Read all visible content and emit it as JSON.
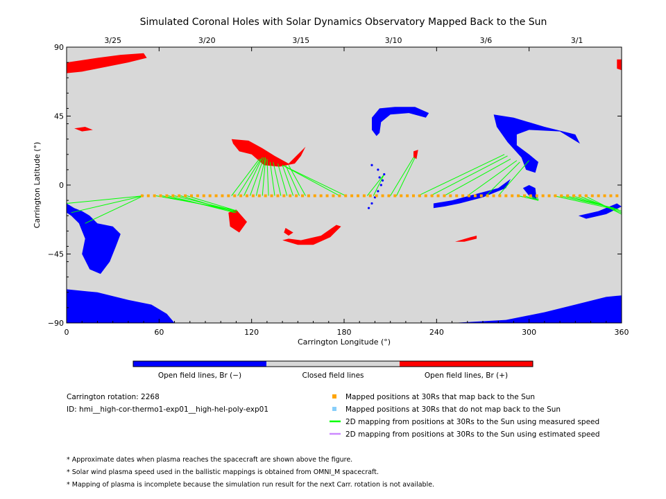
{
  "chart_data": {
    "type": "scatter",
    "title": "Simulated Coronal Holes with Solar Dynamics Observatory Mapped Back to the Sun",
    "xlabel": "Carrington Longitude (°)",
    "ylabel": "Carrington Latitude (°)",
    "xlim": [
      0,
      360
    ],
    "ylim": [
      -90,
      90
    ],
    "x_ticks": [
      "0",
      "60",
      "120",
      "180",
      "240",
      "300",
      "360"
    ],
    "y_ticks": [
      "90",
      "45",
      "0",
      "−45",
      "−90"
    ],
    "x_tick_values": [
      0,
      60,
      120,
      180,
      240,
      300,
      360
    ],
    "y_tick_values": [
      90,
      45,
      0,
      -45,
      -90
    ],
    "top_axis": {
      "labels": [
        "3/25",
        "3/20",
        "3/15",
        "3/10",
        "3/6",
        "3/1"
      ],
      "longitudes": [
        30,
        91,
        152,
        212,
        272,
        331
      ]
    },
    "colors": {
      "background": "#d8d8d8",
      "negative": "#0000ff",
      "positive": "#ff0000",
      "mapped": "#ffa500",
      "unmapped": "#87cefa",
      "measured": "#00ff00",
      "estimated": "#cc88ff"
    },
    "colorbar": {
      "labels": [
        "Open field lines, Br (−)",
        "Closed field lines",
        "Open field lines, Br (+)"
      ],
      "colors": [
        "#0000ff",
        "#d8d8d8",
        "#ff0000"
      ]
    },
    "regions": [
      {
        "polarity": "positive",
        "points": [
          [
            0,
            80
          ],
          [
            20,
            83
          ],
          [
            35,
            85
          ],
          [
            50,
            86
          ],
          [
            52,
            83
          ],
          [
            40,
            80
          ],
          [
            25,
            77
          ],
          [
            10,
            74
          ],
          [
            0,
            73
          ]
        ]
      },
      {
        "polarity": "positive",
        "points": [
          [
            357,
            82
          ],
          [
            360,
            82
          ],
          [
            360,
            75
          ],
          [
            357,
            76
          ]
        ]
      },
      {
        "polarity": "positive",
        "points": [
          [
            5,
            37
          ],
          [
            12,
            38
          ],
          [
            17,
            36
          ],
          [
            10,
            35
          ]
        ]
      },
      {
        "polarity": "positive",
        "points": [
          [
            107,
            30
          ],
          [
            118,
            29
          ],
          [
            127,
            24
          ],
          [
            135,
            19
          ],
          [
            144,
            14
          ],
          [
            150,
            20
          ],
          [
            155,
            25
          ],
          [
            152,
            19
          ],
          [
            148,
            14
          ],
          [
            138,
            12
          ],
          [
            128,
            13
          ],
          [
            120,
            20
          ],
          [
            112,
            22
          ],
          [
            108,
            27
          ]
        ]
      },
      {
        "polarity": "positive",
        "points": [
          [
            105,
            -18
          ],
          [
            110,
            -16
          ],
          [
            117,
            -24
          ],
          [
            112,
            -31
          ],
          [
            106,
            -27
          ]
        ]
      },
      {
        "polarity": "positive",
        "points": [
          [
            140,
            -36
          ],
          [
            150,
            -39
          ],
          [
            160,
            -39
          ],
          [
            171,
            -34
          ],
          [
            178,
            -27
          ],
          [
            175,
            -26
          ],
          [
            165,
            -33
          ],
          [
            152,
            -36
          ],
          [
            144,
            -35
          ]
        ]
      },
      {
        "polarity": "positive",
        "points": [
          [
            142,
            -28
          ],
          [
            147,
            -31
          ],
          [
            144,
            -33
          ],
          [
            141,
            -31
          ]
        ]
      },
      {
        "polarity": "positive",
        "points": [
          [
            225,
            22
          ],
          [
            228,
            23
          ],
          [
            227,
            17
          ],
          [
            225,
            18
          ]
        ]
      },
      {
        "polarity": "positive",
        "points": [
          [
            252,
            -37
          ],
          [
            262,
            -34
          ],
          [
            266,
            -33
          ],
          [
            266,
            -35
          ],
          [
            258,
            -37
          ]
        ]
      },
      {
        "polarity": "negative",
        "points": [
          [
            198,
            44
          ],
          [
            203,
            50
          ],
          [
            213,
            51
          ],
          [
            226,
            51
          ],
          [
            235,
            47
          ],
          [
            233,
            44
          ],
          [
            222,
            47
          ],
          [
            210,
            46
          ],
          [
            204,
            41
          ],
          [
            203,
            34
          ],
          [
            201,
            32
          ],
          [
            198,
            36
          ]
        ]
      },
      {
        "polarity": "negative",
        "points": [
          [
            277,
            46
          ],
          [
            290,
            44
          ],
          [
            310,
            38
          ],
          [
            330,
            33
          ],
          [
            333,
            27
          ],
          [
            320,
            35
          ],
          [
            300,
            36
          ],
          [
            292,
            33
          ],
          [
            292,
            26
          ],
          [
            300,
            20
          ],
          [
            306,
            15
          ],
          [
            304,
            8
          ],
          [
            298,
            10
          ],
          [
            295,
            18
          ],
          [
            286,
            28
          ],
          [
            279,
            38
          ]
        ]
      },
      {
        "polarity": "negative",
        "points": [
          [
            296,
            -2
          ],
          [
            300,
            -7
          ],
          [
            305,
            -10
          ],
          [
            304,
            -2
          ],
          [
            300,
            0
          ]
        ]
      },
      {
        "polarity": "negative",
        "points": [
          [
            238,
            -12
          ],
          [
            250,
            -10
          ],
          [
            265,
            -6
          ],
          [
            280,
            -2
          ],
          [
            288,
            4
          ],
          [
            285,
            -2
          ],
          [
            270,
            -8
          ],
          [
            255,
            -12
          ],
          [
            245,
            -14
          ],
          [
            238,
            -15
          ]
        ]
      },
      {
        "polarity": "negative",
        "points": [
          [
            332,
            -20
          ],
          [
            345,
            -17
          ],
          [
            357,
            -12
          ],
          [
            360,
            -14
          ],
          [
            350,
            -19
          ],
          [
            337,
            -22
          ]
        ]
      },
      {
        "polarity": "negative",
        "points": [
          [
            0,
            -12
          ],
          [
            5,
            -15
          ],
          [
            10,
            -17
          ],
          [
            15,
            -20
          ],
          [
            20,
            -25
          ],
          [
            30,
            -27
          ],
          [
            35,
            -32
          ],
          [
            32,
            -40
          ],
          [
            28,
            -50
          ],
          [
            22,
            -58
          ],
          [
            15,
            -55
          ],
          [
            10,
            -45
          ],
          [
            12,
            -35
          ],
          [
            8,
            -25
          ],
          [
            3,
            -20
          ],
          [
            0,
            -18
          ]
        ]
      },
      {
        "polarity": "negative",
        "points": [
          [
            0,
            -68
          ],
          [
            20,
            -70
          ],
          [
            40,
            -75
          ],
          [
            55,
            -78
          ],
          [
            65,
            -84
          ],
          [
            70,
            -90
          ],
          [
            0,
            -90
          ]
        ]
      },
      {
        "polarity": "negative",
        "points": [
          [
            250,
            -90
          ],
          [
            285,
            -88
          ],
          [
            310,
            -83
          ],
          [
            330,
            -78
          ],
          [
            350,
            -73
          ],
          [
            360,
            -72
          ],
          [
            360,
            -90
          ]
        ]
      }
    ],
    "trail_points": [
      [
        196,
        -15
      ],
      [
        198,
        -12
      ],
      [
        200,
        -8
      ],
      [
        202,
        -4
      ],
      [
        204,
        0
      ],
      [
        205,
        3
      ],
      [
        206,
        7
      ],
      [
        202,
        10
      ],
      [
        198,
        13
      ],
      [
        203,
        5
      ]
    ],
    "mapped_positions_lon": [
      49,
      53,
      57,
      61,
      65,
      69,
      73,
      77,
      81,
      85,
      89,
      93,
      97,
      101,
      105,
      109,
      113,
      117,
      121,
      125,
      129,
      133,
      137,
      141,
      145,
      149,
      153,
      157,
      161,
      165,
      169,
      173,
      177,
      181,
      185,
      189,
      193,
      197,
      201,
      205,
      209,
      213,
      217,
      221,
      225,
      229,
      233,
      237,
      241,
      245,
      249,
      253,
      257,
      261,
      265,
      269,
      273,
      277,
      281,
      285,
      289,
      293,
      297,
      301,
      305,
      309,
      313,
      317,
      321,
      325,
      329,
      333,
      337,
      341,
      345,
      349,
      353,
      357
    ],
    "mapped_positions_lat": -7,
    "mapping_lines": [
      [
        [
          50,
          -7
        ],
        [
          0,
          -12
        ]
      ],
      [
        [
          50,
          -7
        ],
        [
          3,
          -18
        ]
      ],
      [
        [
          50,
          -7
        ],
        [
          12,
          -25
        ]
      ],
      [
        [
          58,
          -7
        ],
        [
          107,
          -16
        ]
      ],
      [
        [
          62,
          -7
        ],
        [
          108,
          -17
        ]
      ],
      [
        [
          66,
          -7
        ],
        [
          109,
          -18
        ]
      ],
      [
        [
          70,
          -7
        ],
        [
          110,
          -17
        ]
      ],
      [
        [
          74,
          -7
        ],
        [
          110,
          -18
        ]
      ],
      [
        [
          78,
          -7
        ],
        [
          111,
          -17
        ]
      ],
      [
        [
          107,
          -7
        ],
        [
          125,
          17
        ]
      ],
      [
        [
          111,
          -7
        ],
        [
          126,
          17
        ]
      ],
      [
        [
          115,
          -7
        ],
        [
          127,
          18
        ]
      ],
      [
        [
          119,
          -7
        ],
        [
          128,
          18
        ]
      ],
      [
        [
          123,
          -7
        ],
        [
          129,
          18
        ]
      ],
      [
        [
          127,
          -7
        ],
        [
          129,
          17
        ]
      ],
      [
        [
          131,
          -7
        ],
        [
          130,
          17
        ]
      ],
      [
        [
          135,
          -7
        ],
        [
          132,
          15
        ]
      ],
      [
        [
          139,
          -7
        ],
        [
          134,
          15
        ]
      ],
      [
        [
          143,
          -7
        ],
        [
          137,
          14
        ]
      ],
      [
        [
          147,
          -7
        ],
        [
          140,
          13
        ]
      ],
      [
        [
          151,
          -7
        ],
        [
          142,
          13
        ]
      ],
      [
        [
          155,
          -7
        ],
        [
          144,
          13
        ]
      ],
      [
        [
          177,
          -7
        ],
        [
          140,
          13
        ]
      ],
      [
        [
          181,
          -7
        ],
        [
          142,
          12
        ]
      ],
      [
        [
          195,
          -7
        ],
        [
          206,
          7
        ]
      ],
      [
        [
          199,
          -7
        ],
        [
          206,
          7
        ]
      ],
      [
        [
          210,
          -7
        ],
        [
          225,
          18
        ]
      ],
      [
        [
          214,
          -7
        ],
        [
          226,
          18
        ]
      ],
      [
        [
          228,
          -7
        ],
        [
          284,
          20
        ]
      ],
      [
        [
          236,
          -7
        ],
        [
          286,
          19
        ]
      ],
      [
        [
          245,
          -7
        ],
        [
          288,
          17
        ]
      ],
      [
        [
          260,
          -7
        ],
        [
          292,
          16
        ]
      ],
      [
        [
          272,
          -7
        ],
        [
          294,
          15
        ]
      ],
      [
        [
          280,
          -7
        ],
        [
          300,
          16
        ]
      ],
      [
        [
          293,
          -7
        ],
        [
          306,
          -10
        ]
      ],
      [
        [
          297,
          -7
        ],
        [
          306,
          -10
        ]
      ],
      [
        [
          301,
          -7
        ],
        [
          306,
          -10
        ]
      ],
      [
        [
          305,
          -7
        ],
        [
          306,
          -10
        ]
      ],
      [
        [
          316,
          -7
        ],
        [
          352,
          -15
        ]
      ],
      [
        [
          320,
          -7
        ],
        [
          355,
          -15
        ]
      ],
      [
        [
          324,
          -7
        ],
        [
          358,
          -16
        ]
      ],
      [
        [
          328,
          -7
        ],
        [
          360,
          -17
        ]
      ],
      [
        [
          332,
          -7
        ],
        [
          360,
          -18
        ]
      ],
      [
        [
          336,
          -7
        ],
        [
          360,
          -19
        ]
      ]
    ]
  },
  "info": {
    "rotation": "Carrington rotation: 2268",
    "id": "ID: hmi__high-cor-thermo1-exp01__high-hel-poly-exp01"
  },
  "legend": {
    "mapped": "Mapped positions at 30Rs that map back to the Sun",
    "unmapped": "Mapped positions at 30Rs that do not map back to the Sun",
    "measured": "2D mapping from positions at 30Rs to the Sun using measured speed",
    "estimated": "2D mapping from positions at 30Rs to the Sun using estimated speed"
  },
  "notes": [
    "* Approximate dates when plasma reaches the spacecraft are shown above the figure.",
    "* Solar wind plasma speed used in the ballistic mappings is obtained from OMNI_M spacecraft.",
    "* Mapping of plasma is incomplete because the simulation run result for the next Carr. rotation is not available."
  ]
}
